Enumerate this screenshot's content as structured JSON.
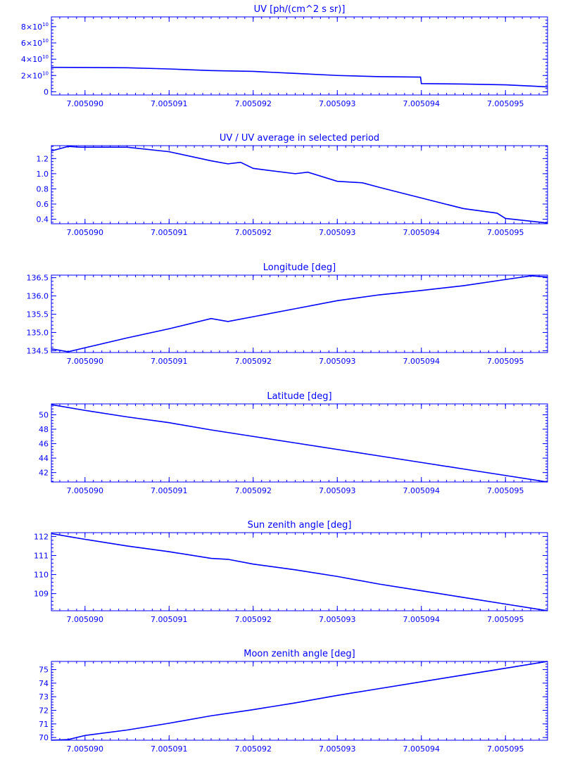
{
  "figure": {
    "color": "#0000ff"
  },
  "chart_data": [
    {
      "type": "line",
      "title": "UV [ph/(cm^2 s sr)]",
      "xlabel": "",
      "ylabel": "",
      "xlim": [
        7.0050896,
        7.0050955
      ],
      "ylim": [
        -4000000000.0,
        92000000000.0
      ],
      "x_ticks": [
        7.00509,
        7.005091,
        7.005092,
        7.005093,
        7.005094,
        7.005095
      ],
      "x_tick_labels": [
        "7.005090",
        "7.005091",
        "7.005092",
        "7.005093",
        "7.005094",
        "7.005095"
      ],
      "y_ticks": [
        0,
        20000000000.0,
        40000000000.0,
        60000000000.0,
        80000000000.0
      ],
      "y_tick_labels": [
        {
          "base": "0",
          "exp": ""
        },
        {
          "base": "2×10",
          "exp": "10"
        },
        {
          "base": "4×10",
          "exp": "10"
        },
        {
          "base": "6×10",
          "exp": "10"
        },
        {
          "base": "8×10",
          "exp": "10"
        }
      ],
      "x": [
        7.0050896,
        7.0050905,
        7.005091,
        7.0050915,
        7.005092,
        7.0050925,
        7.005093,
        7.0050935,
        7.00509399,
        7.005094,
        7.0050945,
        7.005095,
        7.0050955
      ],
      "y": [
        30000000000.0,
        29500000000.0,
        28000000000.0,
        26000000000.0,
        25000000000.0,
        22500000000.0,
        20000000000.0,
        18500000000.0,
        18000000000.0,
        10000000000.0,
        9500000000.0,
        8500000000.0,
        6000000000.0
      ]
    },
    {
      "type": "line",
      "title": "UV / UV average in selected period",
      "xlabel": "",
      "ylabel": "",
      "xlim": [
        7.0050896,
        7.0050955
      ],
      "ylim": [
        0.34,
        1.37
      ],
      "x_ticks": [
        7.00509,
        7.005091,
        7.005092,
        7.005093,
        7.005094,
        7.005095
      ],
      "x_tick_labels": [
        "7.005090",
        "7.005091",
        "7.005092",
        "7.005093",
        "7.005094",
        "7.005095"
      ],
      "y_ticks": [
        0.4,
        0.6,
        0.8,
        1.0,
        1.2
      ],
      "y_tick_labels": [
        "0.4",
        "0.6",
        "0.8",
        "1.0",
        "1.2"
      ],
      "x": [
        7.0050896,
        7.0050898,
        7.00508995,
        7.0050905,
        7.005091,
        7.0050915,
        7.0050917,
        7.00509185,
        7.005092,
        7.0050925,
        7.00509265,
        7.005093,
        7.0050933,
        7.0050935,
        7.005094,
        7.0050945,
        7.0050949,
        7.005095,
        7.0050955
      ],
      "y": [
        1.3,
        1.36,
        1.35,
        1.35,
        1.29,
        1.17,
        1.13,
        1.15,
        1.07,
        1.0,
        1.02,
        0.9,
        0.88,
        0.82,
        0.68,
        0.54,
        0.48,
        0.41,
        0.35
      ]
    },
    {
      "type": "line",
      "title": "Longitude [deg]",
      "xlabel": "",
      "ylabel": "",
      "xlim": [
        7.0050896,
        7.0050955
      ],
      "ylim": [
        134.45,
        136.57
      ],
      "x_ticks": [
        7.00509,
        7.005091,
        7.005092,
        7.005093,
        7.005094,
        7.005095
      ],
      "x_tick_labels": [
        "7.005090",
        "7.005091",
        "7.005092",
        "7.005093",
        "7.005094",
        "7.005095"
      ],
      "y_ticks": [
        134.5,
        135.0,
        135.5,
        136.0,
        136.5
      ],
      "y_tick_labels": [
        "134.5",
        "135.0",
        "135.5",
        "136.0",
        "136.5"
      ],
      "x": [
        7.0050896,
        7.0050898,
        7.00509,
        7.0050905,
        7.005091,
        7.0050915,
        7.0050917,
        7.005092,
        7.0050925,
        7.005093,
        7.0050935,
        7.005094,
        7.0050945,
        7.005095,
        7.0050953,
        7.0050955
      ],
      "y": [
        134.55,
        134.47,
        134.58,
        134.85,
        135.1,
        135.38,
        135.3,
        135.43,
        135.65,
        135.87,
        136.03,
        136.15,
        136.28,
        136.45,
        136.55,
        136.52
      ]
    },
    {
      "type": "line",
      "title": "Latitude [deg]",
      "xlabel": "",
      "ylabel": "",
      "xlim": [
        7.0050896,
        7.0050955
      ],
      "ylim": [
        40.7,
        51.5
      ],
      "x_ticks": [
        7.00509,
        7.005091,
        7.005092,
        7.005093,
        7.005094,
        7.005095
      ],
      "x_tick_labels": [
        "7.005090",
        "7.005091",
        "7.005092",
        "7.005093",
        "7.005094",
        "7.005095"
      ],
      "y_ticks": [
        42,
        44,
        46,
        48,
        50
      ],
      "y_tick_labels": [
        "42",
        "44",
        "46",
        "48",
        "50"
      ],
      "x": [
        7.0050896,
        7.00509,
        7.0050905,
        7.005091,
        7.0050915,
        7.005092,
        7.0050925,
        7.005093,
        7.0050935,
        7.005094,
        7.0050945,
        7.005095,
        7.0050955
      ],
      "y": [
        51.4,
        50.6,
        49.7,
        48.9,
        47.9,
        47.0,
        46.1,
        45.2,
        44.3,
        43.4,
        42.5,
        41.6,
        40.7
      ]
    },
    {
      "type": "line",
      "title": "Sun zenith angle [deg]",
      "xlabel": "",
      "ylabel": "",
      "xlim": [
        7.0050896,
        7.0050955
      ],
      "ylim": [
        108.1,
        112.2
      ],
      "x_ticks": [
        7.00509,
        7.005091,
        7.005092,
        7.005093,
        7.005094,
        7.005095
      ],
      "x_tick_labels": [
        "7.005090",
        "7.005091",
        "7.005092",
        "7.005093",
        "7.005094",
        "7.005095"
      ],
      "y_ticks": [
        109,
        110,
        111,
        112
      ],
      "y_tick_labels": [
        "109",
        "110",
        "111",
        "112"
      ],
      "x": [
        7.0050896,
        7.0050898,
        7.00509,
        7.0050905,
        7.005091,
        7.0050915,
        7.0050917,
        7.005092,
        7.0050925,
        7.005093,
        7.0050935,
        7.005094,
        7.0050945,
        7.005095,
        7.0050955
      ],
      "y": [
        112.15,
        112.0,
        111.85,
        111.5,
        111.2,
        110.85,
        110.8,
        110.55,
        110.25,
        109.9,
        109.5,
        109.15,
        108.8,
        108.45,
        108.1
      ]
    },
    {
      "type": "line",
      "title": "Moon zenith angle [deg]",
      "xlabel": "",
      "ylabel": "",
      "xlim": [
        7.0050896,
        7.0050955
      ],
      "ylim": [
        69.8,
        75.6
      ],
      "x_ticks": [
        7.00509,
        7.005091,
        7.005092,
        7.005093,
        7.005094,
        7.005095
      ],
      "x_tick_labels": [
        "7.005090",
        "7.005091",
        "7.005092",
        "7.005093",
        "7.005094",
        "7.005095"
      ],
      "y_ticks": [
        70,
        71,
        72,
        73,
        74,
        75
      ],
      "y_tick_labels": [
        "70",
        "71",
        "72",
        "73",
        "74",
        "75"
      ],
      "x": [
        7.0050896,
        7.0050898,
        7.00509,
        7.0050905,
        7.005091,
        7.0050915,
        7.005092,
        7.0050925,
        7.005093,
        7.0050935,
        7.005094,
        7.0050945,
        7.005095,
        7.0050955
      ],
      "y": [
        69.8,
        69.85,
        70.15,
        70.55,
        71.05,
        71.6,
        72.05,
        72.55,
        73.1,
        73.6,
        74.1,
        74.6,
        75.1,
        75.6
      ]
    }
  ]
}
